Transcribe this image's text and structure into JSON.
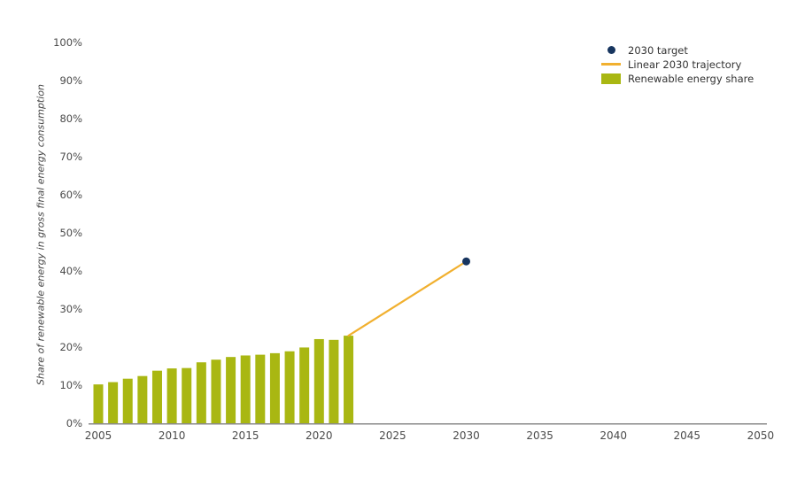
{
  "chart_data": {
    "type": "bar",
    "title": "",
    "xlabel": "",
    "ylabel": "Share of renewable energy in gross final energy consumption",
    "ylim": [
      0,
      100
    ],
    "y_ticks": [
      0,
      10,
      20,
      30,
      40,
      50,
      60,
      70,
      80,
      90,
      100
    ],
    "y_tick_suffix": "%",
    "x_ticks": [
      2005,
      2010,
      2015,
      2020,
      2025,
      2030,
      2035,
      2040,
      2045,
      2050
    ],
    "grid": false,
    "legend_position": "top-right",
    "series": [
      {
        "name": "Renewable energy share",
        "type": "bar",
        "color": "#a9b712",
        "categories": [
          2005,
          2006,
          2007,
          2008,
          2009,
          2010,
          2011,
          2012,
          2013,
          2014,
          2015,
          2016,
          2017,
          2018,
          2019,
          2020,
          2021,
          2022
        ],
        "values": [
          10.2,
          10.8,
          11.7,
          12.4,
          13.8,
          14.4,
          14.5,
          16.0,
          16.7,
          17.4,
          17.8,
          18.0,
          18.4,
          18.9,
          19.9,
          22.1,
          21.9,
          23.0
        ]
      },
      {
        "name": "Linear 2030 trajectory",
        "type": "line",
        "color": "#f1b02f",
        "points": [
          [
            2022,
            23.0
          ],
          [
            2030,
            42.5
          ]
        ]
      },
      {
        "name": "2030 target",
        "type": "scatter",
        "color": "#17355f",
        "points": [
          [
            2030,
            42.5
          ]
        ]
      }
    ],
    "colors": {
      "axis_line": "#8a8a8a",
      "tick_text": "#4a4a4a",
      "background": "#ffffff"
    }
  }
}
